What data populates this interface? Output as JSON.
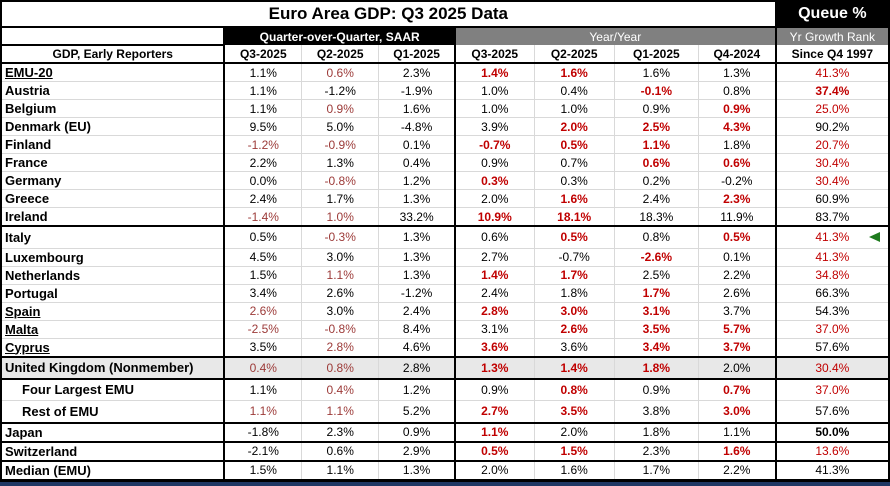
{
  "title": "Euro Area GDP: Q3 2025 Data",
  "queue_header": "Queue %",
  "group_headers": {
    "qoq": "Quarter-over-Quarter, SAAR",
    "yoy": "Year/Year",
    "rank": "Yr Growth Rank"
  },
  "column_headers": {
    "label": "GDP, Early Reporters",
    "qoq": [
      "Q3-2025",
      "Q2-2025",
      "Q1-2025"
    ],
    "yoy": [
      "Q3-2025",
      "Q2-2025",
      "Q1-2025",
      "Q4-2024"
    ],
    "rank": "Since Q4 1997"
  },
  "colors": {
    "qoq_red": "#9C3A38",
    "red": "#C00000",
    "black": "#000000",
    "header_gray": "#808080",
    "row_gray": "#E8E8E8",
    "grid_gray": "#D9D9D9",
    "bottom_navy": "#1F3864",
    "marker_green": "#1E7B1E"
  },
  "rows": [
    {
      "label": "EMU-20",
      "underline": true,
      "cells": [
        {
          "v": "1.1%",
          "s": "k"
        },
        {
          "v": "0.6%",
          "s": "r"
        },
        {
          "v": "2.3%",
          "s": "k"
        },
        {
          "v": "1.4%",
          "s": "R"
        },
        {
          "v": "1.6%",
          "s": "R"
        },
        {
          "v": "1.6%",
          "s": "k"
        },
        {
          "v": "1.3%",
          "s": "k"
        },
        {
          "v": "41.3%",
          "s": "q"
        }
      ]
    },
    {
      "label": "Austria",
      "cells": [
        {
          "v": "1.1%",
          "s": "k"
        },
        {
          "v": "-1.2%",
          "s": "k"
        },
        {
          "v": "-1.9%",
          "s": "k"
        },
        {
          "v": "1.0%",
          "s": "k"
        },
        {
          "v": "0.4%",
          "s": "k"
        },
        {
          "v": "-0.1%",
          "s": "R"
        },
        {
          "v": "0.8%",
          "s": "k"
        },
        {
          "v": "37.4%",
          "s": "Q"
        }
      ]
    },
    {
      "label": "Belgium",
      "cells": [
        {
          "v": "1.1%",
          "s": "k"
        },
        {
          "v": "0.9%",
          "s": "r"
        },
        {
          "v": "1.6%",
          "s": "k"
        },
        {
          "v": "1.0%",
          "s": "k"
        },
        {
          "v": "1.0%",
          "s": "k"
        },
        {
          "v": "0.9%",
          "s": "k"
        },
        {
          "v": "0.9%",
          "s": "R"
        },
        {
          "v": "25.0%",
          "s": "q"
        }
      ]
    },
    {
      "label": "Denmark (EU)",
      "cells": [
        {
          "v": "9.5%",
          "s": "k"
        },
        {
          "v": "5.0%",
          "s": "k"
        },
        {
          "v": "-4.8%",
          "s": "k"
        },
        {
          "v": "3.9%",
          "s": "k"
        },
        {
          "v": "2.0%",
          "s": "R"
        },
        {
          "v": "2.5%",
          "s": "R"
        },
        {
          "v": "4.3%",
          "s": "R"
        },
        {
          "v": "90.2%",
          "s": "k"
        }
      ]
    },
    {
      "label": "Finland",
      "cells": [
        {
          "v": "-1.2%",
          "s": "r"
        },
        {
          "v": "-0.9%",
          "s": "r"
        },
        {
          "v": "0.1%",
          "s": "k"
        },
        {
          "v": "-0.7%",
          "s": "R"
        },
        {
          "v": "0.5%",
          "s": "R"
        },
        {
          "v": "1.1%",
          "s": "R"
        },
        {
          "v": "1.8%",
          "s": "k"
        },
        {
          "v": "20.7%",
          "s": "q"
        }
      ]
    },
    {
      "label": "France",
      "cells": [
        {
          "v": "2.2%",
          "s": "k"
        },
        {
          "v": "1.3%",
          "s": "k"
        },
        {
          "v": "0.4%",
          "s": "k"
        },
        {
          "v": "0.9%",
          "s": "k"
        },
        {
          "v": "0.7%",
          "s": "k"
        },
        {
          "v": "0.6%",
          "s": "R"
        },
        {
          "v": "0.6%",
          "s": "R"
        },
        {
          "v": "30.4%",
          "s": "q"
        }
      ]
    },
    {
      "label": "Germany",
      "cells": [
        {
          "v": "0.0%",
          "s": "k"
        },
        {
          "v": "-0.8%",
          "s": "r"
        },
        {
          "v": "1.2%",
          "s": "k"
        },
        {
          "v": "0.3%",
          "s": "R"
        },
        {
          "v": "0.3%",
          "s": "k"
        },
        {
          "v": "0.2%",
          "s": "k"
        },
        {
          "v": "-0.2%",
          "s": "k"
        },
        {
          "v": "30.4%",
          "s": "q"
        }
      ]
    },
    {
      "label": "Greece",
      "cells": [
        {
          "v": "2.4%",
          "s": "k"
        },
        {
          "v": "1.7%",
          "s": "k"
        },
        {
          "v": "1.3%",
          "s": "k"
        },
        {
          "v": "2.0%",
          "s": "k"
        },
        {
          "v": "1.6%",
          "s": "R"
        },
        {
          "v": "2.4%",
          "s": "k"
        },
        {
          "v": "2.3%",
          "s": "R"
        },
        {
          "v": "60.9%",
          "s": "k"
        }
      ]
    },
    {
      "label": "Ireland",
      "thick_bottom": true,
      "cells": [
        {
          "v": "-1.4%",
          "s": "r"
        },
        {
          "v": "1.0%",
          "s": "r"
        },
        {
          "v": "33.2%",
          "s": "k"
        },
        {
          "v": "10.9%",
          "s": "R"
        },
        {
          "v": "18.1%",
          "s": "R"
        },
        {
          "v": "18.3%",
          "s": "k"
        },
        {
          "v": "11.9%",
          "s": "k"
        },
        {
          "v": "83.7%",
          "s": "k"
        }
      ]
    },
    {
      "label": "Italy",
      "tall": true,
      "cells": [
        {
          "v": "0.5%",
          "s": "k"
        },
        {
          "v": "-0.3%",
          "s": "r"
        },
        {
          "v": "1.3%",
          "s": "k"
        },
        {
          "v": "0.6%",
          "s": "k"
        },
        {
          "v": "0.5%",
          "s": "R"
        },
        {
          "v": "0.8%",
          "s": "k"
        },
        {
          "v": "0.5%",
          "s": "R"
        },
        {
          "v": "41.3%",
          "s": "q"
        }
      ]
    },
    {
      "label": "Luxembourg",
      "cells": [
        {
          "v": "4.5%",
          "s": "k"
        },
        {
          "v": "3.0%",
          "s": "k"
        },
        {
          "v": "1.3%",
          "s": "k"
        },
        {
          "v": "2.7%",
          "s": "k"
        },
        {
          "v": "-0.7%",
          "s": "k"
        },
        {
          "v": "-2.6%",
          "s": "R"
        },
        {
          "v": "0.1%",
          "s": "k"
        },
        {
          "v": "41.3%",
          "s": "q"
        }
      ]
    },
    {
      "label": "Netherlands",
      "cells": [
        {
          "v": "1.5%",
          "s": "k"
        },
        {
          "v": "1.1%",
          "s": "r"
        },
        {
          "v": "1.3%",
          "s": "k"
        },
        {
          "v": "1.4%",
          "s": "R"
        },
        {
          "v": "1.7%",
          "s": "R"
        },
        {
          "v": "2.5%",
          "s": "k"
        },
        {
          "v": "2.2%",
          "s": "k"
        },
        {
          "v": "34.8%",
          "s": "q"
        }
      ]
    },
    {
      "label": "Portugal",
      "cells": [
        {
          "v": "3.4%",
          "s": "k"
        },
        {
          "v": "2.6%",
          "s": "k"
        },
        {
          "v": "-1.2%",
          "s": "k"
        },
        {
          "v": "2.4%",
          "s": "k"
        },
        {
          "v": "1.8%",
          "s": "k"
        },
        {
          "v": "1.7%",
          "s": "R"
        },
        {
          "v": "2.6%",
          "s": "k"
        },
        {
          "v": "66.3%",
          "s": "k"
        }
      ]
    },
    {
      "label": "Spain",
      "underline": true,
      "cells": [
        {
          "v": "2.6%",
          "s": "r"
        },
        {
          "v": "3.0%",
          "s": "k"
        },
        {
          "v": "2.4%",
          "s": "k"
        },
        {
          "v": "2.8%",
          "s": "R"
        },
        {
          "v": "3.0%",
          "s": "R"
        },
        {
          "v": "3.1%",
          "s": "R"
        },
        {
          "v": "3.7%",
          "s": "k"
        },
        {
          "v": "54.3%",
          "s": "k"
        }
      ]
    },
    {
      "label": "Malta",
      "underline": true,
      "cells": [
        {
          "v": "-2.5%",
          "s": "r"
        },
        {
          "v": "-0.8%",
          "s": "r"
        },
        {
          "v": "8.4%",
          "s": "k"
        },
        {
          "v": "3.1%",
          "s": "k"
        },
        {
          "v": "2.6%",
          "s": "R"
        },
        {
          "v": "3.5%",
          "s": "R"
        },
        {
          "v": "5.7%",
          "s": "R"
        },
        {
          "v": "37.0%",
          "s": "q"
        }
      ]
    },
    {
      "label": "Cyprus",
      "underline": true,
      "thick_bottom": true,
      "cells": [
        {
          "v": "3.5%",
          "s": "k"
        },
        {
          "v": "2.8%",
          "s": "r"
        },
        {
          "v": "4.6%",
          "s": "k"
        },
        {
          "v": "3.6%",
          "s": "R"
        },
        {
          "v": "3.6%",
          "s": "k"
        },
        {
          "v": "3.4%",
          "s": "R"
        },
        {
          "v": "3.7%",
          "s": "R"
        },
        {
          "v": "57.6%",
          "s": "k"
        }
      ]
    },
    {
      "label": "United Kingdom (Nonmember)",
      "gray": true,
      "tall": true,
      "thick_bottom": true,
      "cells": [
        {
          "v": "0.4%",
          "s": "r"
        },
        {
          "v": "0.8%",
          "s": "r"
        },
        {
          "v": "2.8%",
          "s": "k"
        },
        {
          "v": "1.3%",
          "s": "R"
        },
        {
          "v": "1.4%",
          "s": "R"
        },
        {
          "v": "1.8%",
          "s": "R"
        },
        {
          "v": "2.0%",
          "s": "k"
        },
        {
          "v": "30.4%",
          "s": "q"
        }
      ]
    },
    {
      "label": "Four Largest EMU",
      "indent": true,
      "tall": true,
      "cells": [
        {
          "v": "1.1%",
          "s": "k"
        },
        {
          "v": "0.4%",
          "s": "r"
        },
        {
          "v": "1.2%",
          "s": "k"
        },
        {
          "v": "0.9%",
          "s": "k"
        },
        {
          "v": "0.8%",
          "s": "R"
        },
        {
          "v": "0.9%",
          "s": "k"
        },
        {
          "v": "0.7%",
          "s": "R"
        },
        {
          "v": "37.0%",
          "s": "q"
        }
      ]
    },
    {
      "label": "Rest of EMU",
      "indent": true,
      "tall": true,
      "thick_bottom": true,
      "cells": [
        {
          "v": "1.1%",
          "s": "r"
        },
        {
          "v": "1.1%",
          "s": "r"
        },
        {
          "v": "5.2%",
          "s": "k"
        },
        {
          "v": "2.7%",
          "s": "R"
        },
        {
          "v": "3.5%",
          "s": "R"
        },
        {
          "v": "3.8%",
          "s": "k"
        },
        {
          "v": "3.0%",
          "s": "R"
        },
        {
          "v": "57.6%",
          "s": "k"
        }
      ]
    },
    {
      "label": "Japan",
      "thick_bottom": true,
      "cells": [
        {
          "v": "-1.8%",
          "s": "k"
        },
        {
          "v": "2.3%",
          "s": "k"
        },
        {
          "v": "0.9%",
          "s": "k"
        },
        {
          "v": "1.1%",
          "s": "R"
        },
        {
          "v": "2.0%",
          "s": "k"
        },
        {
          "v": "1.8%",
          "s": "k"
        },
        {
          "v": "1.1%",
          "s": "k"
        },
        {
          "v": "50.0%",
          "s": "K"
        }
      ]
    },
    {
      "label": "Switzerland",
      "thick_bottom": true,
      "cells": [
        {
          "v": "-2.1%",
          "s": "k"
        },
        {
          "v": "0.6%",
          "s": "k"
        },
        {
          "v": "2.9%",
          "s": "k"
        },
        {
          "v": "0.5%",
          "s": "R"
        },
        {
          "v": "1.5%",
          "s": "R"
        },
        {
          "v": "2.3%",
          "s": "k"
        },
        {
          "v": "1.6%",
          "s": "R"
        },
        {
          "v": "13.6%",
          "s": "q"
        }
      ]
    },
    {
      "label": "Median (EMU)",
      "cells": [
        {
          "v": "1.5%",
          "s": "k"
        },
        {
          "v": "1.1%",
          "s": "k"
        },
        {
          "v": "1.3%",
          "s": "k"
        },
        {
          "v": "2.0%",
          "s": "k"
        },
        {
          "v": "1.6%",
          "s": "k"
        },
        {
          "v": "1.7%",
          "s": "k"
        },
        {
          "v": "2.2%",
          "s": "k"
        },
        {
          "v": "41.3%",
          "s": "k"
        }
      ]
    }
  ]
}
